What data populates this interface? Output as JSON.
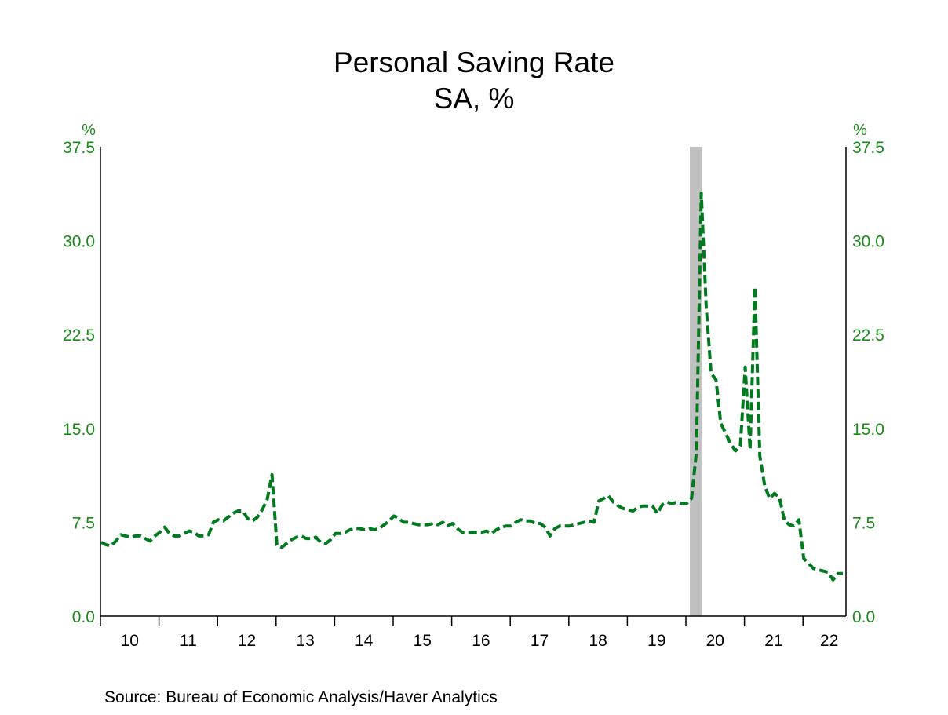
{
  "chart_data": {
    "type": "line",
    "title": "Personal Saving Rate",
    "subtitle": "SA, %",
    "ylabel_left": "%",
    "ylabel_right": "%",
    "ylim": [
      0,
      37.5
    ],
    "yticks": [
      "0.0",
      "7.5",
      "15.0",
      "22.5",
      "30.0",
      "37.5"
    ],
    "xticks": [
      "10",
      "11",
      "12",
      "13",
      "14",
      "15",
      "16",
      "17",
      "18",
      "19",
      "20",
      "21",
      "22"
    ],
    "x_start": "2010-01",
    "x_frequency": "monthly",
    "x_range": [
      "2010-01",
      "2022-12"
    ],
    "grid": false,
    "line_color": "#007a1e",
    "axis_text_color": "#1a8a1a",
    "recession_shading": [
      {
        "start": "2020-02",
        "end": "2020-04",
        "color": "#c0c0c0"
      }
    ],
    "series": [
      {
        "values": [
          5.9,
          5.7,
          5.6,
          6.0,
          6.5,
          6.4,
          6.3,
          6.4,
          6.4,
          6.2,
          6.0,
          6.4,
          6.7,
          7.1,
          6.6,
          6.4,
          6.4,
          6.6,
          6.8,
          6.7,
          6.4,
          6.4,
          6.5,
          7.5,
          7.7,
          7.6,
          7.9,
          8.2,
          8.4,
          8.4,
          7.8,
          7.6,
          7.9,
          8.5,
          9.3,
          11.3,
          5.7,
          5.5,
          5.8,
          6.1,
          6.3,
          6.4,
          6.2,
          6.2,
          6.3,
          5.9,
          5.8,
          6.1,
          6.6,
          6.6,
          6.7,
          6.9,
          7.0,
          7.0,
          6.9,
          7.0,
          6.9,
          7.0,
          7.3,
          7.6,
          8.0,
          7.8,
          7.5,
          7.5,
          7.4,
          7.3,
          7.3,
          7.3,
          7.4,
          7.3,
          7.5,
          7.2,
          7.4,
          7.0,
          6.7,
          6.7,
          6.7,
          6.7,
          6.7,
          6.8,
          6.6,
          6.9,
          7.1,
          7.2,
          7.2,
          7.5,
          7.7,
          7.6,
          7.6,
          7.4,
          7.4,
          7.1,
          6.4,
          7.0,
          7.2,
          7.2,
          7.2,
          7.3,
          7.4,
          7.5,
          7.6,
          7.5,
          9.2,
          9.4,
          9.6,
          9.1,
          8.8,
          8.6,
          8.5,
          8.4,
          8.7,
          8.8,
          8.8,
          8.8,
          8.2,
          8.9,
          9.1,
          9.0,
          9.1,
          9.0,
          9.0,
          9.4,
          13.1,
          33.8,
          24.7,
          19.4,
          18.9,
          15.4,
          14.6,
          13.8,
          13.2,
          13.6,
          19.9,
          13.3,
          26.3,
          12.8,
          10.4,
          9.4,
          9.8,
          9.5,
          7.7,
          7.3,
          7.2,
          7.7,
          4.6,
          4.2,
          3.8,
          3.7,
          3.6,
          3.5,
          2.9,
          3.4,
          3.4
        ]
      }
    ],
    "source": "Source:  Bureau of Economic Analysis/Haver Analytics"
  }
}
